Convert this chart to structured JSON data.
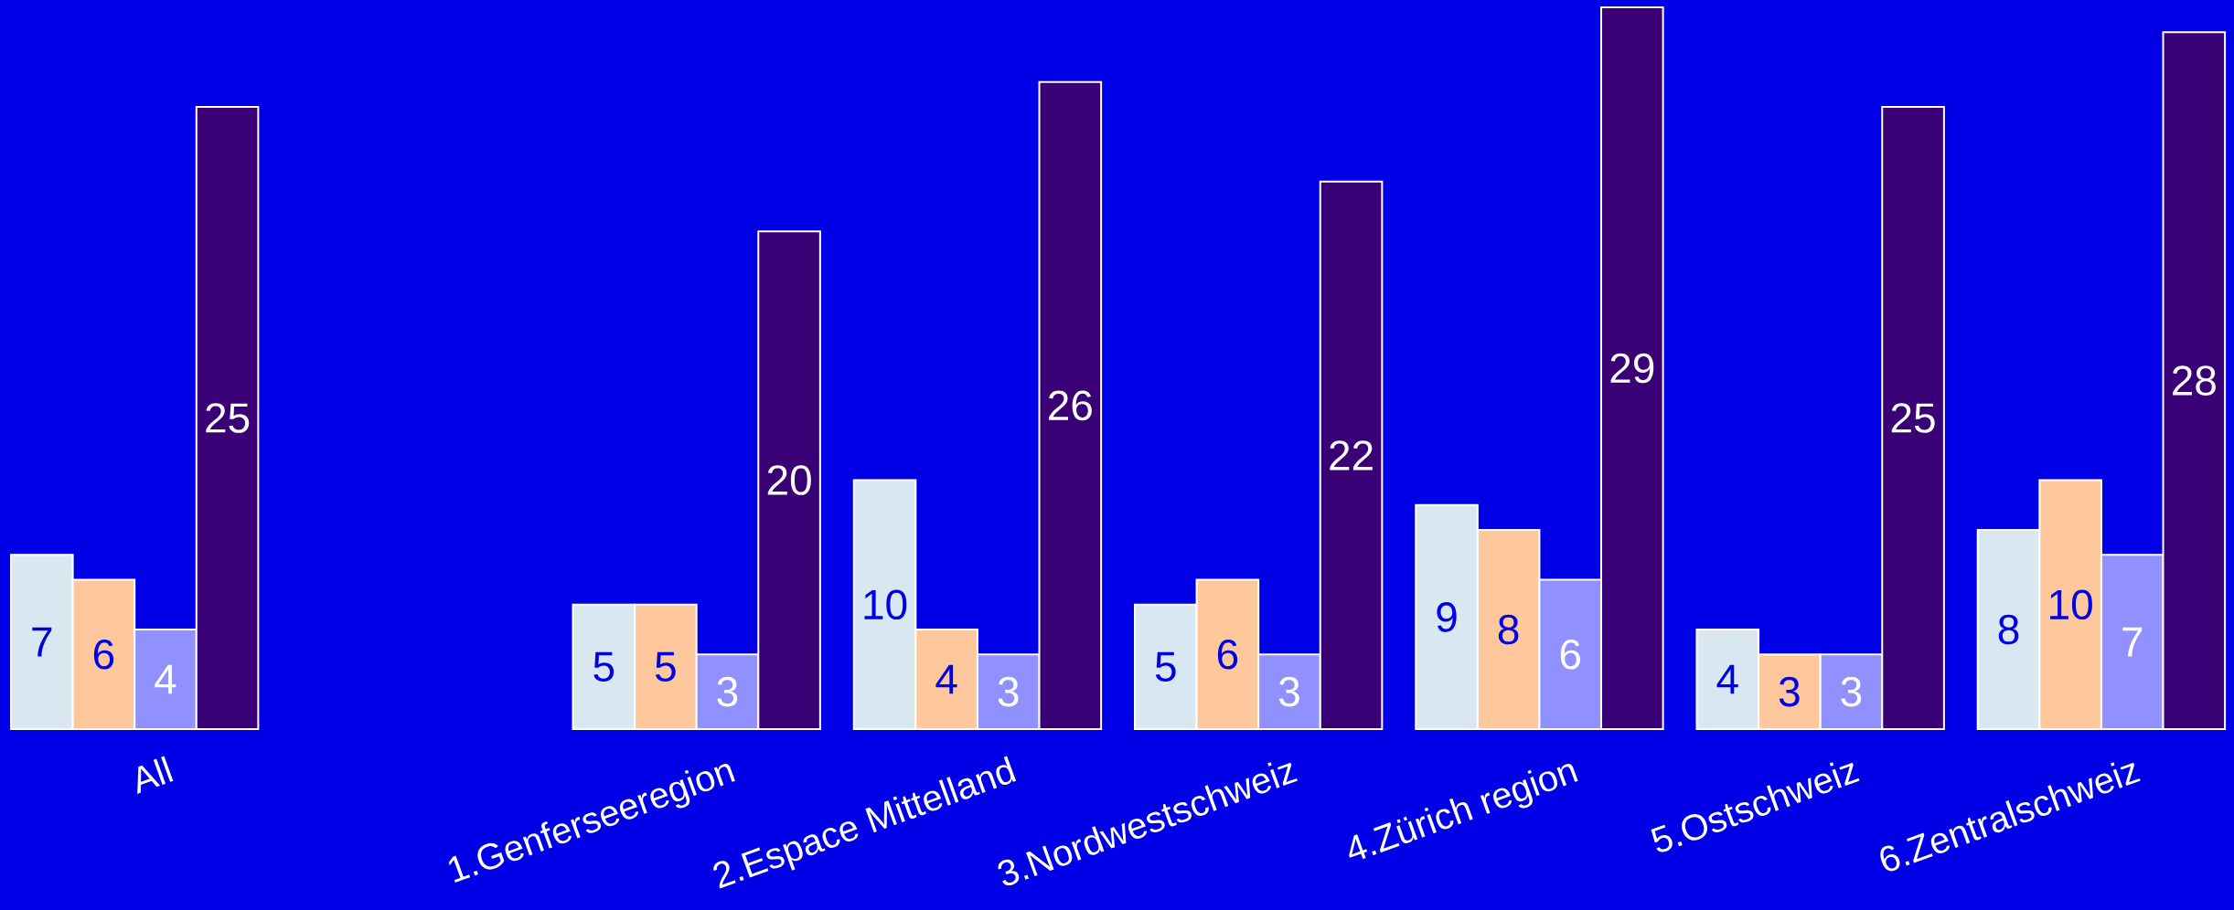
{
  "chart_data": {
    "type": "bar",
    "categories": [
      "All",
      null,
      "1.Genferseeregion",
      "2.Espace Mittelland",
      "3.Nordwestschweiz",
      "4.Zürich region",
      "5.Ostschweiz",
      "6.Zentralschweiz"
    ],
    "series": [
      {
        "color": "#d9e8f0",
        "values": [
          7,
          null,
          5,
          10,
          5,
          9,
          4,
          8
        ]
      },
      {
        "color": "#ffc89c",
        "values": [
          6,
          null,
          5,
          4,
          6,
          8,
          3,
          10
        ]
      },
      {
        "color": "#9090ff",
        "values": [
          4,
          null,
          3,
          3,
          3,
          6,
          3,
          7
        ]
      },
      {
        "color": "#3a0075",
        "values": [
          25,
          null,
          20,
          26,
          22,
          29,
          25,
          28
        ]
      }
    ],
    "data_labels": true
  }
}
